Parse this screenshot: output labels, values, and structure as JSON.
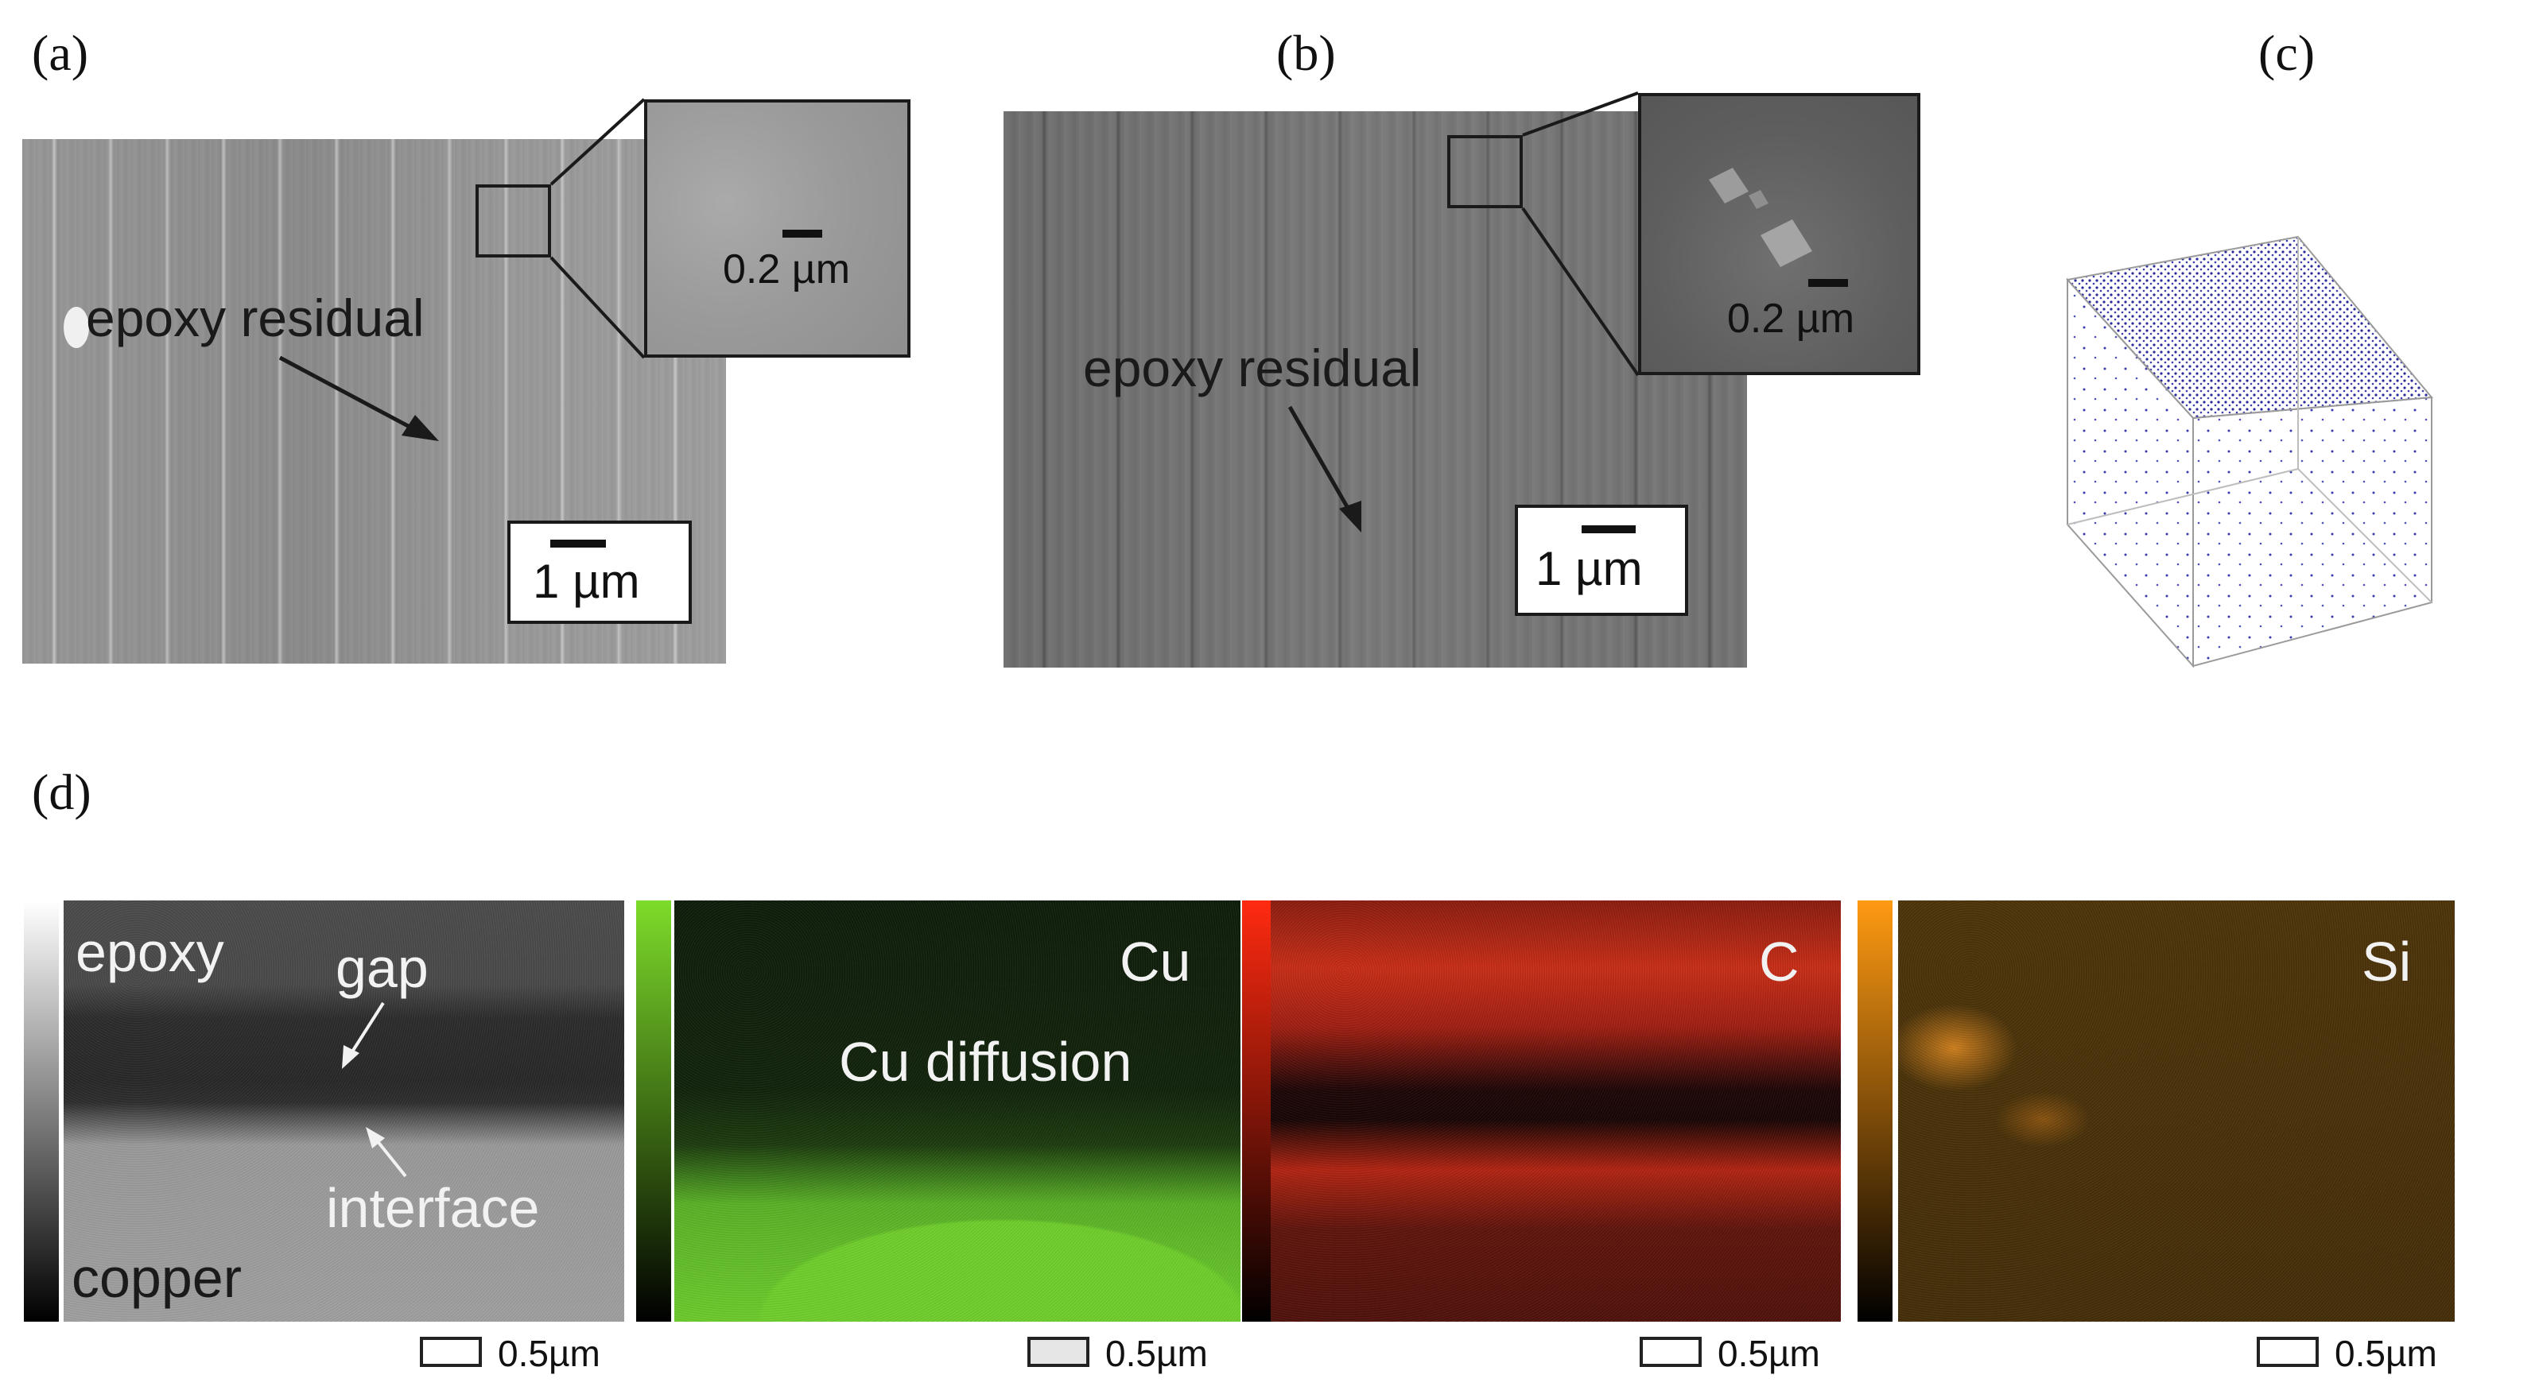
{
  "panel_labels": {
    "a": "(a)",
    "b": "(b)",
    "c": "(c)",
    "d": "(d)"
  },
  "panel_a": {
    "annotation": "epoxy residual",
    "inset_scale": "0.2 µm",
    "scale": "1 µm"
  },
  "panel_b": {
    "annotation": "epoxy residual",
    "inset_scale": "0.2 µm",
    "scale": "1 µm"
  },
  "panel_d": {
    "se_map": {
      "labels": {
        "epoxy": "epoxy",
        "gap": "gap",
        "interface": "interface",
        "copper": "copper"
      },
      "scale": "0.5µm"
    },
    "cu_map": {
      "element": "Cu",
      "annotation": "Cu diffusion",
      "scale": "0.5µm"
    },
    "c_map": {
      "element": "C",
      "scale": "0.5µm"
    },
    "si_map": {
      "element": "Si",
      "scale": "0.5µm"
    }
  },
  "colors": {
    "cu": "#6fcf2a",
    "c": "#c82b14",
    "si": "#e08c1e",
    "atoms": "#2a2a9a"
  }
}
